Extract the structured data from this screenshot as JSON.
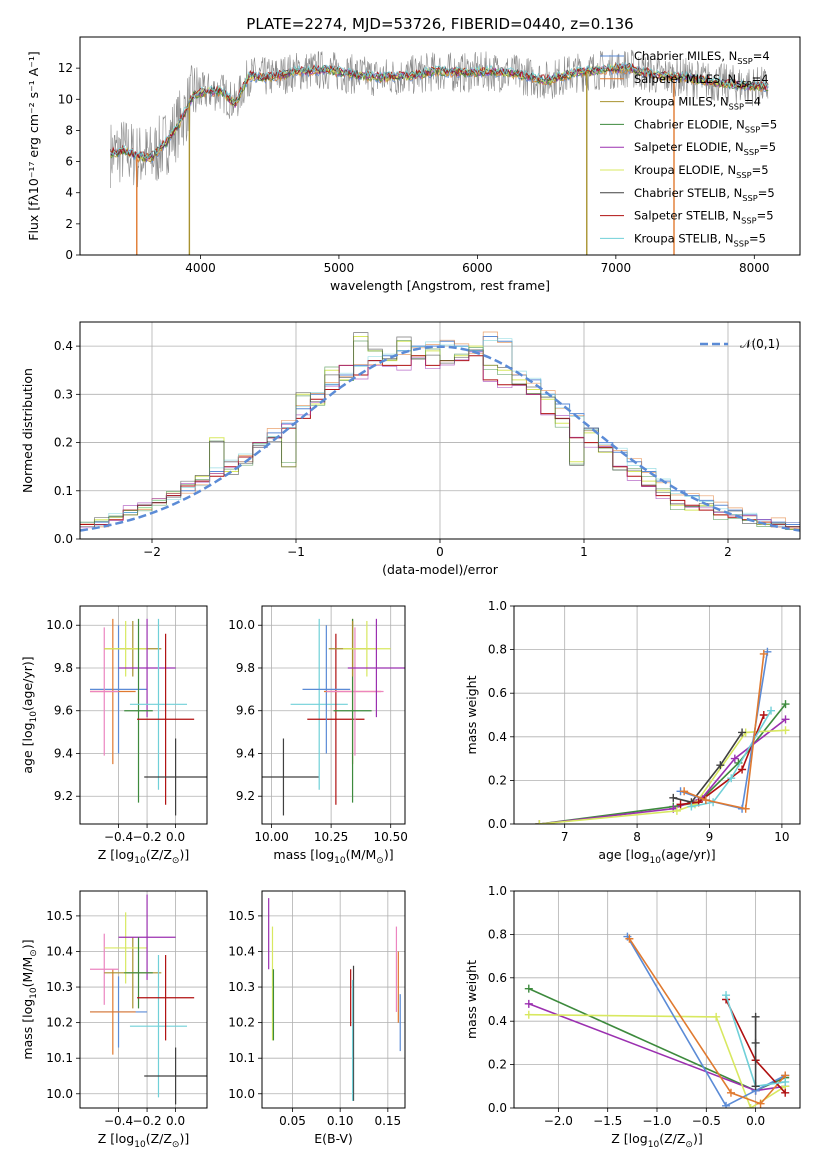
{
  "page_title": "PLATE=2274, MJD=53726, FIBERID=0440, z=0.136",
  "chart_data": [
    {
      "id": "spectrum",
      "type": "line",
      "xlabel": "wavelength [Angstrom, rest frame]",
      "ylabel": "Flux [fλ10⁻¹⁷ erg cm⁻² s⁻¹ A⁻¹]",
      "xlim": [
        3130,
        8330
      ],
      "ylim": [
        0,
        14
      ],
      "xticks": [
        "4000",
        "5000",
        "6000",
        "7000",
        "8000"
      ],
      "yticks": [
        "0",
        "2",
        "4",
        "6",
        "8",
        "10",
        "12"
      ],
      "data_envelope": {
        "x": [
          3350,
          3450,
          3550,
          3650,
          3750,
          3850,
          3950,
          4050,
          4150,
          4250,
          4350,
          4500,
          4700,
          4900,
          5100,
          5300,
          5500,
          5700,
          5900,
          6100,
          6300,
          6500,
          6700,
          6900,
          7100,
          7300,
          7500,
          7700,
          7900,
          8100
        ],
        "y": [
          6.5,
          6.7,
          6.3,
          6.3,
          7.2,
          8.5,
          10.3,
          10.5,
          10.5,
          9.7,
          11.5,
          11.4,
          11.8,
          11.9,
          11.6,
          11.4,
          11.5,
          11.8,
          11.7,
          11.8,
          11.6,
          11.2,
          11.7,
          11.9,
          12.0,
          11.5,
          11.4,
          11.1,
          10.9,
          10.8
        ]
      },
      "series": [
        {
          "name": "Chabrier MILES, N$_{SSP}$=4",
          "color": "#5b8bd6"
        },
        {
          "name": "Salpeter MILES, N$_{SSP}$=4",
          "color": "#e07a30"
        },
        {
          "name": "Kroupa MILES, N$_{SSP}$=4",
          "color": "#a8922f"
        },
        {
          "name": "Chabrier ELODIE, N$_{SSP}$=5",
          "color": "#3d8a3d"
        },
        {
          "name": "Salpeter ELODIE, N$_{SSP}$=5",
          "color": "#9b30b0"
        },
        {
          "name": "Kroupa ELODIE, N$_{SSP}$=5",
          "color": "#d8e860"
        },
        {
          "name": "Chabrier STELIB, N$_{SSP}$=5",
          "color": "#404040"
        },
        {
          "name": "Salpeter STELIB, N$_{SSP}$=5",
          "color": "#b01010"
        },
        {
          "name": "Kroupa STELIB, N$_{SSP}$=5",
          "color": "#70d0d8"
        }
      ],
      "legend": "upper right"
    },
    {
      "id": "residuals",
      "type": "histogram",
      "xlabel": "(data-model)/error",
      "ylabel": "Normed distribution",
      "xlim": [
        -2.5,
        2.5
      ],
      "ylim": [
        0,
        0.45
      ],
      "xticks": [
        "−2",
        "−1",
        "0",
        "1",
        "2"
      ],
      "yticks": [
        "0.0",
        "0.1",
        "0.2",
        "0.3",
        "0.4"
      ],
      "reference_curve": "$\\mathcal{N}(0,1)$",
      "bin_width": 0.1,
      "bin_centers": [
        -2.45,
        -2.35,
        -2.25,
        -2.15,
        -2.05,
        -1.95,
        -1.85,
        -1.75,
        -1.65,
        -1.55,
        -1.45,
        -1.35,
        -1.25,
        -1.15,
        -1.05,
        -0.95,
        -0.85,
        -0.75,
        -0.65,
        -0.55,
        -0.45,
        -0.35,
        -0.25,
        -0.15,
        -0.05,
        0.05,
        0.15,
        0.25,
        0.35,
        0.45,
        0.55,
        0.65,
        0.75,
        0.85,
        0.95,
        1.05,
        1.15,
        1.25,
        1.35,
        1.45,
        1.55,
        1.65,
        1.75,
        1.85,
        1.95,
        2.05,
        2.15,
        2.25,
        2.35,
        2.45
      ],
      "series_values": {
        "MILES": [
          0.03,
          0.035,
          0.045,
          0.055,
          0.07,
          0.08,
          0.09,
          0.1,
          0.12,
          0.14,
          0.16,
          0.17,
          0.19,
          0.22,
          0.24,
          0.27,
          0.3,
          0.32,
          0.34,
          0.36,
          0.37,
          0.38,
          0.39,
          0.4,
          0.4,
          0.41,
          0.4,
          0.39,
          0.42,
          0.41,
          0.34,
          0.33,
          0.3,
          0.28,
          0.26,
          0.23,
          0.2,
          0.18,
          0.16,
          0.14,
          0.12,
          0.1,
          0.09,
          0.08,
          0.07,
          0.06,
          0.05,
          0.04,
          0.035,
          0.03
        ],
        "ELODIE": [
          0.03,
          0.04,
          0.045,
          0.05,
          0.065,
          0.08,
          0.095,
          0.11,
          0.13,
          0.21,
          0.14,
          0.16,
          0.2,
          0.21,
          0.15,
          0.3,
          0.28,
          0.35,
          0.33,
          0.42,
          0.39,
          0.37,
          0.41,
          0.38,
          0.39,
          0.37,
          0.38,
          0.4,
          0.36,
          0.35,
          0.33,
          0.31,
          0.29,
          0.24,
          0.16,
          0.22,
          0.18,
          0.15,
          0.14,
          0.12,
          0.1,
          0.07,
          0.06,
          0.07,
          0.05,
          0.05,
          0.04,
          0.03,
          0.025,
          0.02
        ],
        "STELIB": [
          0.03,
          0.03,
          0.04,
          0.06,
          0.07,
          0.075,
          0.09,
          0.11,
          0.12,
          0.13,
          0.15,
          0.17,
          0.2,
          0.21,
          0.23,
          0.25,
          0.29,
          0.31,
          0.36,
          0.34,
          0.37,
          0.36,
          0.36,
          0.38,
          0.36,
          0.37,
          0.37,
          0.38,
          0.33,
          0.32,
          0.32,
          0.3,
          0.26,
          0.25,
          0.21,
          0.2,
          0.19,
          0.15,
          0.13,
          0.11,
          0.09,
          0.08,
          0.07,
          0.06,
          0.05,
          0.045,
          0.04,
          0.035,
          0.03,
          0.025
        ]
      }
    },
    {
      "id": "age-vs-Z",
      "type": "errorbar",
      "xlabel": "Z [log$_{10}$($Z/Z_{\\odot}$)]",
      "ylabel": "age  [log$_{10}$($age/yr$)]",
      "xlim": [
        -0.67,
        0.22
      ],
      "ylim": [
        9.07,
        10.09
      ],
      "xticks": [
        "−0.4",
        "−0.2",
        "0.0"
      ],
      "yticks": [
        "9.2",
        "9.4",
        "9.6",
        "9.8",
        "10.0"
      ],
      "points": [
        {
          "color": "#5b8bd6",
          "x": -0.4,
          "xerr": 0.2,
          "y": 9.7,
          "yerr": 0.3
        },
        {
          "color": "#e07a30",
          "x": -0.44,
          "xerr": 0.16,
          "y": 9.69,
          "yerr": 0.34
        },
        {
          "color": "#ec85c0",
          "x": -0.5,
          "xerr": 0.1,
          "y": 9.69,
          "yerr": 0.3
        },
        {
          "color": "#a8922f",
          "x": -0.3,
          "xerr": 0.2,
          "y": 9.89,
          "yerr": 0.13
        },
        {
          "color": "#d8e860",
          "x": -0.35,
          "xerr": 0.15,
          "y": 9.89,
          "yerr": 0.13
        },
        {
          "color": "#9b30b0",
          "x": -0.2,
          "xerr": 0.2,
          "y": 9.8,
          "yerr": 0.23
        },
        {
          "color": "#3d8a3d",
          "x": -0.26,
          "xerr": 0.1,
          "y": 9.6,
          "yerr": 0.43
        },
        {
          "color": "#70d0d8",
          "x": -0.12,
          "xerr": 0.2,
          "y": 9.63,
          "yerr": 0.4
        },
        {
          "color": "#b01010",
          "x": -0.07,
          "xerr": 0.2,
          "y": 9.56,
          "yerr": 0.4
        },
        {
          "color": "#404040",
          "x": 0.0,
          "xerr": 0.22,
          "y": 9.29,
          "yerr": 0.18
        }
      ]
    },
    {
      "id": "age-vs-mass",
      "type": "errorbar",
      "xlabel": "mass [log$_{10}$($M/M_{\\odot}$)]",
      "ylabel": "",
      "xlim": [
        9.96,
        10.56
      ],
      "ylim": [
        9.07,
        10.09
      ],
      "xticks": [
        "10.00",
        "10.25",
        "10.50"
      ],
      "yticks": [
        "9.2",
        "9.4",
        "9.6",
        "9.8",
        "10.0"
      ],
      "points": [
        {
          "color": "#404040",
          "x": 10.05,
          "xerr": 0.15,
          "y": 9.29,
          "yerr": 0.18
        },
        {
          "color": "#70d0d8",
          "x": 10.2,
          "xerr": 0.12,
          "y": 9.63,
          "yerr": 0.4
        },
        {
          "color": "#b01010",
          "x": 10.27,
          "xerr": 0.12,
          "y": 9.56,
          "yerr": 0.4
        },
        {
          "color": "#5b8bd6",
          "x": 10.23,
          "xerr": 0.1,
          "y": 9.7,
          "yerr": 0.3
        },
        {
          "color": "#e07a30",
          "x": 10.34,
          "xerr": 0.12,
          "y": 9.69,
          "yerr": 0.34
        },
        {
          "color": "#ec85c0",
          "x": 10.35,
          "xerr": 0.12,
          "y": 9.69,
          "yerr": 0.3
        },
        {
          "color": "#3d8a3d",
          "x": 10.34,
          "xerr": 0.08,
          "y": 9.6,
          "yerr": 0.43
        },
        {
          "color": "#a8922f",
          "x": 10.34,
          "xerr": 0.1,
          "y": 9.89,
          "yerr": 0.13
        },
        {
          "color": "#d8e860",
          "x": 10.4,
          "xerr": 0.1,
          "y": 9.89,
          "yerr": 0.13
        },
        {
          "color": "#9b30b0",
          "x": 10.44,
          "xerr": 0.12,
          "y": 9.8,
          "yerr": 0.23
        }
      ]
    },
    {
      "id": "mass-weight-vs-age",
      "type": "line",
      "xlabel": "age  [log$_{10}$($age/yr$)]",
      "ylabel": "mass weight",
      "xlim": [
        6.3,
        10.25
      ],
      "ylim": [
        0,
        1
      ],
      "xticks": [
        "7",
        "8",
        "9",
        "10"
      ],
      "yticks": [
        "0.0",
        "0.2",
        "0.4",
        "0.6",
        "0.8",
        "1.0"
      ],
      "series": [
        {
          "color": "#3d8a3d",
          "x": [
            6.65,
            8.5,
            8.85,
            9.4,
            10.05
          ],
          "y": [
            0.0,
            0.08,
            0.1,
            0.28,
            0.55
          ]
        },
        {
          "color": "#9b30b0",
          "x": [
            6.65,
            8.5,
            8.9,
            9.35,
            10.05
          ],
          "y": [
            0.0,
            0.07,
            0.12,
            0.3,
            0.48
          ]
        },
        {
          "color": "#d8e860",
          "x": [
            6.65,
            8.55,
            8.8,
            9.5,
            10.05
          ],
          "y": [
            0.0,
            0.06,
            0.09,
            0.42,
            0.43
          ]
        },
        {
          "color": "#404040",
          "x": [
            8.5,
            8.75,
            9.15,
            9.45
          ],
          "y": [
            0.12,
            0.1,
            0.27,
            0.42
          ]
        },
        {
          "color": "#b01010",
          "x": [
            8.6,
            8.85,
            9.45,
            9.75
          ],
          "y": [
            0.09,
            0.1,
            0.25,
            0.5
          ]
        },
        {
          "color": "#70d0d8",
          "x": [
            8.75,
            9.05,
            9.3,
            9.85
          ],
          "y": [
            0.08,
            0.1,
            0.21,
            0.52
          ]
        },
        {
          "color": "#5b8bd6",
          "x": [
            8.6,
            8.95,
            9.45,
            9.8
          ],
          "y": [
            0.15,
            0.11,
            0.07,
            0.79
          ]
        },
        {
          "color": "#e07a30",
          "x": [
            8.65,
            8.95,
            9.5,
            9.75
          ],
          "y": [
            0.15,
            0.11,
            0.07,
            0.78
          ]
        }
      ]
    },
    {
      "id": "mass-vs-Z",
      "type": "errorbar",
      "xlabel": "Z [log$_{10}$($Z/Z_{\\odot}$)]",
      "ylabel": "mass [log$_{10}$($M/M_{\\odot}$)]",
      "xlim": [
        -0.67,
        0.22
      ],
      "ylim": [
        9.96,
        10.57
      ],
      "xticks": [
        "−0.4",
        "−0.2",
        "0.0"
      ],
      "yticks": [
        "10.0",
        "10.1",
        "10.2",
        "10.3",
        "10.4",
        "10.5"
      ],
      "points": [
        {
          "color": "#5b8bd6",
          "x": -0.4,
          "xerr": 0.2,
          "y": 10.23,
          "yerr": 0.1
        },
        {
          "color": "#e07a30",
          "x": -0.44,
          "xerr": 0.16,
          "y": 10.23,
          "yerr": 0.12
        },
        {
          "color": "#ec85c0",
          "x": -0.5,
          "xerr": 0.1,
          "y": 10.35,
          "yerr": 0.1
        },
        {
          "color": "#a8922f",
          "x": -0.3,
          "xerr": 0.2,
          "y": 10.34,
          "yerr": 0.1
        },
        {
          "color": "#d8e860",
          "x": -0.35,
          "xerr": 0.15,
          "y": 10.41,
          "yerr": 0.1
        },
        {
          "color": "#9b30b0",
          "x": -0.2,
          "xerr": 0.2,
          "y": 10.44,
          "yerr": 0.12
        },
        {
          "color": "#3d8a3d",
          "x": -0.26,
          "xerr": 0.1,
          "y": 10.34,
          "yerr": 0.1
        },
        {
          "color": "#70d0d8",
          "x": -0.12,
          "xerr": 0.2,
          "y": 10.19,
          "yerr": 0.2
        },
        {
          "color": "#b01010",
          "x": -0.07,
          "xerr": 0.2,
          "y": 10.27,
          "yerr": 0.12
        },
        {
          "color": "#404040",
          "x": 0.0,
          "xerr": 0.22,
          "y": 10.05,
          "yerr": 0.08
        }
      ]
    },
    {
      "id": "mass-vs-ebv",
      "type": "errorbar",
      "xlabel": "E(B-V)",
      "ylabel": "",
      "xlim": [
        0.018,
        0.168
      ],
      "ylim": [
        9.96,
        10.57
      ],
      "xticks": [
        "0.05",
        "0.10",
        "0.15"
      ],
      "yticks": [
        "10.0",
        "10.1",
        "10.2",
        "10.3",
        "10.4",
        "10.5"
      ],
      "points": [
        {
          "color": "#9b30b0",
          "x": 0.025,
          "xerr": 0,
          "y": 10.45,
          "yerr": 0.1
        },
        {
          "color": "#d8e860",
          "x": 0.029,
          "xerr": 0,
          "y": 10.31,
          "yerr": 0.16
        },
        {
          "color": "#3d8a3d",
          "x": 0.03,
          "xerr": 0,
          "y": 10.25,
          "yerr": 0.1
        },
        {
          "color": "#b01010",
          "x": 0.111,
          "xerr": 0,
          "y": 10.27,
          "yerr": 0.08
        },
        {
          "color": "#404040",
          "x": 0.114,
          "xerr": 0,
          "y": 10.17,
          "yerr": 0.19
        },
        {
          "color": "#70d0d8",
          "x": 0.113,
          "xerr": 0,
          "y": 10.15,
          "yerr": 0.17
        },
        {
          "color": "#ec85c0",
          "x": 0.159,
          "xerr": 0,
          "y": 10.35,
          "yerr": 0.12
        },
        {
          "color": "#e07a30",
          "x": 0.161,
          "xerr": 0,
          "y": 10.3,
          "yerr": 0.1
        },
        {
          "color": "#5b8bd6",
          "x": 0.163,
          "xerr": 0,
          "y": 10.2,
          "yerr": 0.08
        }
      ]
    },
    {
      "id": "mass-weight-vs-Z",
      "type": "line",
      "xlabel": "Z [log$_{10}$($Z/Z_{\\odot}$)]",
      "ylabel": "mass weight",
      "xlim": [
        -2.45,
        0.45
      ],
      "ylim": [
        0,
        1
      ],
      "xticks": [
        "−2.0",
        "−1.5",
        "−1.0",
        "−0.5",
        "0.0"
      ],
      "yticks": [
        "0.0",
        "0.2",
        "0.4",
        "0.6",
        "0.8",
        "1.0"
      ],
      "series": [
        {
          "color": "#3d8a3d",
          "x": [
            -2.3,
            0.0,
            0.3
          ],
          "y": [
            0.55,
            0.08,
            0.14
          ]
        },
        {
          "color": "#9b30b0",
          "x": [
            -2.3,
            0.0,
            0.3
          ],
          "y": [
            0.48,
            0.08,
            0.1
          ]
        },
        {
          "color": "#d8e860",
          "x": [
            -2.3,
            -0.4,
            -0.05,
            0.3
          ],
          "y": [
            0.43,
            0.42,
            0.0,
            0.1
          ]
        },
        {
          "color": "#5b8bd6",
          "x": [
            -1.3,
            -0.3,
            0.0,
            0.3
          ],
          "y": [
            0.79,
            0.01,
            0.08,
            0.15
          ]
        },
        {
          "color": "#e07a30",
          "x": [
            -1.28,
            -0.25,
            0.05,
            0.3
          ],
          "y": [
            0.78,
            0.07,
            0.02,
            0.15
          ]
        },
        {
          "color": "#b01010",
          "x": [
            -0.3,
            0.0,
            0.3
          ],
          "y": [
            0.5,
            0.22,
            0.07
          ]
        },
        {
          "color": "#70d0d8",
          "x": [
            -0.3,
            0.0,
            0.3
          ],
          "y": [
            0.52,
            0.1,
            0.12
          ]
        },
        {
          "color": "#404040",
          "x": [
            0.0,
            0.0,
            0.0
          ],
          "y": [
            0.42,
            0.3,
            0.1
          ]
        }
      ]
    }
  ]
}
